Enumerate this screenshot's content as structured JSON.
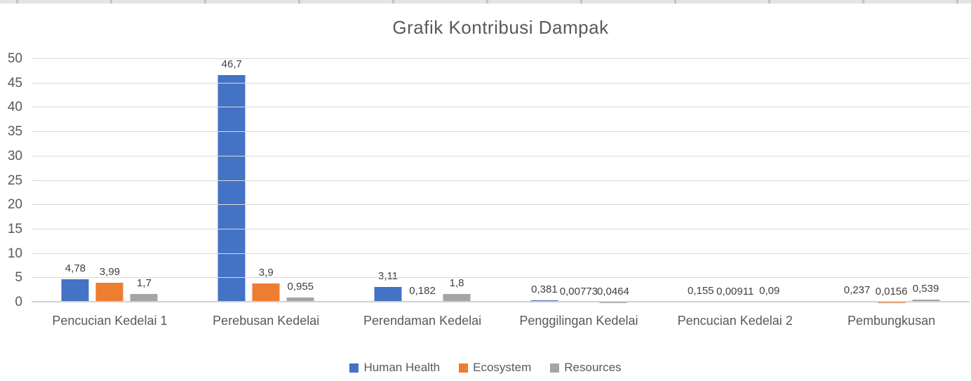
{
  "window": {
    "top_edge_color": "#e4e4e4",
    "top_edge_tick_color": "#c2c2c2"
  },
  "chart_data": {
    "type": "bar",
    "title": "Grafik Kontribusi Dampak",
    "categories": [
      "Pencucian Kedelai 1",
      "Perebusan Kedelai",
      "Perendaman Kedelai",
      "Penggilingan Kedelai",
      "Pencucian Kedelai 2",
      "Pembungkusan"
    ],
    "series": [
      {
        "name": "Human Health",
        "color": "#4472C4",
        "values": [
          4.78,
          46.7,
          3.11,
          0.381,
          0.155,
          0.237
        ],
        "labels": [
          "4,78",
          "46,7",
          "3,11",
          "0,381",
          "0,155",
          "0,237"
        ]
      },
      {
        "name": "Ecosystem",
        "color": "#ED7D31",
        "values": [
          3.99,
          3.9,
          0.182,
          0.00773,
          0.00911,
          0.0156
        ],
        "labels": [
          "3,99",
          "3,9",
          "0,182",
          "0,00773",
          "0,00911",
          "0,0156"
        ]
      },
      {
        "name": "Resources",
        "color": "#A5A5A5",
        "values": [
          1.7,
          0.955,
          1.8,
          0.0464,
          0.09,
          0.539
        ],
        "labels": [
          "1,7",
          "0,955",
          "1,8",
          "0,0464",
          "0,09",
          "0,539"
        ]
      }
    ],
    "y_axis": {
      "min": 0,
      "max": 50,
      "step": 5,
      "tick_labels": [
        "0",
        "5",
        "10",
        "15",
        "20",
        "25",
        "30",
        "35",
        "40",
        "45",
        "50"
      ]
    },
    "grid": true,
    "legend_position": "bottom",
    "colors": {
      "gridline": "#d9d9d9",
      "axis_line": "#d0d0d0",
      "title_text": "#595959",
      "axis_text": "#595959",
      "data_label_text": "#404040"
    }
  }
}
